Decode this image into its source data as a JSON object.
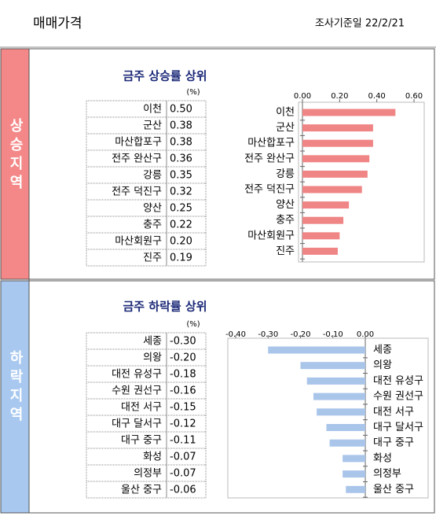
{
  "header": {
    "title": "매매가격",
    "date": "조사기준일 22/2/21"
  },
  "chart_data": [
    {
      "type": "bar",
      "section": "상승지역",
      "title": "금주 상승률 상위",
      "unit": "(%)",
      "categories": [
        "이천",
        "군산",
        "마산합포구",
        "전주 완산구",
        "강릉",
        "전주 덕진구",
        "양산",
        "충주",
        "마산회원구",
        "진주"
      ],
      "values": [
        0.5,
        0.38,
        0.38,
        0.36,
        0.35,
        0.32,
        0.25,
        0.22,
        0.2,
        0.19
      ],
      "value_labels": [
        "0.50",
        "0.38",
        "0.38",
        "0.36",
        "0.35",
        "0.32",
        "0.25",
        "0.22",
        "0.20",
        "0.19"
      ],
      "color": "#f08585",
      "xlim": [
        0,
        0.6
      ],
      "xticks": [
        {
          "value": 0,
          "label": "0.00"
        },
        {
          "value": 0.2,
          "label": "0.20"
        },
        {
          "value": 0.4,
          "label": "0.40"
        },
        {
          "value": 0.6,
          "label": "0.60"
        }
      ]
    },
    {
      "type": "bar",
      "section": "하락지역",
      "title": "금주 하락률 상위",
      "unit": "(%)",
      "categories": [
        "세종",
        "의왕",
        "대전 유성구",
        "수원 권선구",
        "대전 서구",
        "대구 달서구",
        "대구 중구",
        "화성",
        "의정부",
        "울산 중구"
      ],
      "values": [
        -0.3,
        -0.2,
        -0.18,
        -0.16,
        -0.15,
        -0.12,
        -0.11,
        -0.07,
        -0.07,
        -0.06
      ],
      "value_labels": [
        "-0.30",
        "-0.20",
        "-0.18",
        "-0.16",
        "-0.15",
        "-0.12",
        "-0.11",
        "-0.07",
        "-0.07",
        "-0.06"
      ],
      "color": "#a9c5ea",
      "xlim": [
        -0.4,
        0
      ],
      "xticks": [
        {
          "value": -0.4,
          "label": "-0.40"
        },
        {
          "value": -0.3,
          "label": "-0.30"
        },
        {
          "value": -0.2,
          "label": "-0.20"
        },
        {
          "value": -0.1,
          "label": "-0.10"
        },
        {
          "value": 0,
          "label": "0.00"
        }
      ]
    }
  ]
}
